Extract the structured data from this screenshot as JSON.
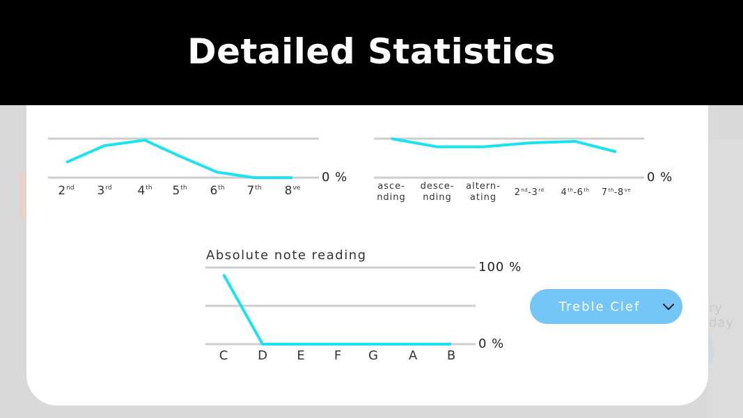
{
  "header": {
    "title": "Detailed Statistics"
  },
  "background": {
    "partial_text": "ry day"
  },
  "colors": {
    "line": "#19e3f0",
    "grid": "#cccccc",
    "dropdown_bg": "#74c6f7",
    "header_bg": "#000000"
  },
  "dropdown": {
    "selected": "Treble Clef",
    "icon": "chevron-down-icon"
  },
  "chart_data": [
    {
      "type": "line",
      "title": "",
      "categories": [
        "2nd",
        "3rd",
        "4th",
        "5th",
        "6th",
        "7th",
        "8ve"
      ],
      "category_labels": [
        {
          "base": "2",
          "sup": "nd"
        },
        {
          "base": "3",
          "sup": "rd"
        },
        {
          "base": "4",
          "sup": "th"
        },
        {
          "base": "5",
          "sup": "th"
        },
        {
          "base": "6",
          "sup": "th"
        },
        {
          "base": "7",
          "sup": "th"
        },
        {
          "base": "8",
          "sup": "ve"
        }
      ],
      "values": [
        39,
        82,
        96,
        55,
        14,
        0,
        0
      ],
      "ylabel": "%",
      "ylim": [
        0,
        100
      ],
      "y_tick_labels": [
        "0 %"
      ],
      "grid": true
    },
    {
      "type": "line",
      "title": "",
      "categories": [
        "ascending",
        "descending",
        "alternating",
        "2nd-3rd",
        "4th-6th",
        "7th-8ve"
      ],
      "category_labels": [
        {
          "line1": "asce-",
          "line2": "nding"
        },
        {
          "line1": "desce-",
          "line2": "nding"
        },
        {
          "line1": "altern-",
          "line2": "ating"
        },
        {
          "a": "2",
          "as": "nd",
          "b": "3",
          "bs": "rd"
        },
        {
          "a": "4",
          "as": "th",
          "b": "6",
          "bs": "th"
        },
        {
          "a": "7",
          "as": "th",
          "b": "8",
          "bs": "ve"
        }
      ],
      "values": [
        100,
        79,
        79,
        89,
        93,
        66
      ],
      "ylabel": "%",
      "ylim": [
        0,
        100
      ],
      "y_tick_labels": [
        "0 %"
      ],
      "grid": true
    },
    {
      "type": "line",
      "title": "Absolute note reading",
      "categories": [
        "C",
        "D",
        "E",
        "F",
        "G",
        "A",
        "B"
      ],
      "values": [
        91,
        0,
        0,
        0,
        0,
        0,
        0
      ],
      "ylabel": "%",
      "ylim": [
        0,
        100
      ],
      "y_tick_labels": [
        "100 %",
        "0 %"
      ],
      "grid": true
    }
  ]
}
